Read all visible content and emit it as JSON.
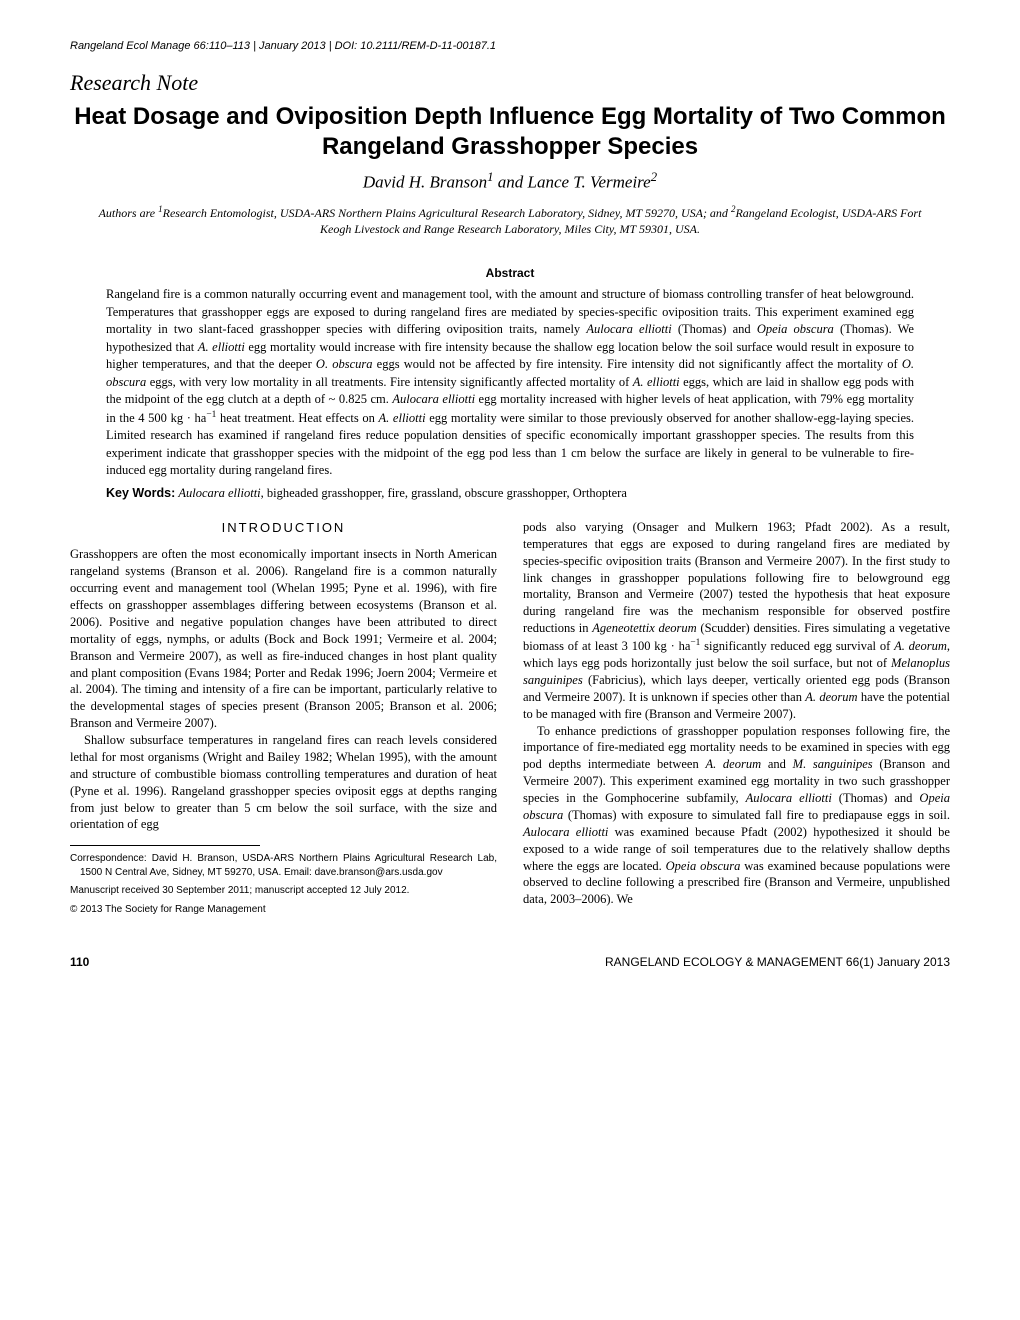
{
  "citation_header": "Rangeland Ecol Manage 66:110–113 | January 2013 | DOI: 10.2111/REM-D-11-00187.1",
  "section_type": "Research Note",
  "title": "Heat Dosage and Oviposition Depth Influence Egg Mortality of Two Common Rangeland Grasshopper Species",
  "authors_html": "David H. Branson<sup>1</sup> and Lance T. Vermeire<sup>2</sup>",
  "affiliations_html": "Authors are <sup>1</sup>Research Entomologist, USDA-ARS Northern Plains Agricultural Research Laboratory, Sidney, MT 59270, USA; and <sup>2</sup>Rangeland Ecologist, USDA-ARS Fort Keogh Livestock and Range Research Laboratory, Miles City, MT 59301, USA.",
  "abstract_heading": "Abstract",
  "abstract_html": "Rangeland fire is a common naturally occurring event and management tool, with the amount and structure of biomass controlling transfer of heat belowground. Temperatures that grasshopper eggs are exposed to during rangeland fires are mediated by species-specific oviposition traits. This experiment examined egg mortality in two slant-faced grasshopper species with differing oviposition traits, namely <span class=\"ital\">Aulocara elliotti</span> (Thomas) and <span class=\"ital\">Opeia obscura</span> (Thomas). We hypothesized that <span class=\"ital\">A. elliotti</span> egg mortality would increase with fire intensity because the shallow egg location below the soil surface would result in exposure to higher temperatures, and that the deeper <span class=\"ital\">O. obscura</span> eggs would not be affected by fire intensity. Fire intensity did not significantly affect the mortality of <span class=\"ital\">O. obscura</span> eggs, with very low mortality in all treatments. Fire intensity significantly affected mortality of <span class=\"ital\">A. elliotti</span> eggs, which are laid in shallow egg pods with the midpoint of the egg clutch at a depth of ~ 0.825 cm. <span class=\"ital\">Aulocara elliotti</span> egg mortality increased with higher levels of heat application, with 79% egg mortality in the 4 500 kg · ha<sup>−1</sup> heat treatment. Heat effects on <span class=\"ital\">A. elliotti</span> egg mortality were similar to those previously observed for another shallow-egg-laying species. Limited research has examined if rangeland fires reduce population densities of specific economically important grasshopper species. The results from this experiment indicate that grasshopper species with the midpoint of the egg pod less than 1 cm below the surface are likely in general to be vulnerable to fire-induced egg mortality during rangeland fires.",
  "keywords_label": "Key Words:",
  "keywords_html": "<span class=\"ital\">Aulocara elliotti</span>, bigheaded grasshopper, fire, grassland, obscure grasshopper, Orthoptera",
  "introduction_heading": "INTRODUCTION",
  "left_p1": "Grasshoppers are often the most economically important insects in North American rangeland systems (Branson et al. 2006). Rangeland fire is a common naturally occurring event and management tool (Whelan 1995; Pyne et al. 1996), with fire effects on grasshopper assemblages differing between ecosystems (Branson et al. 2006). Positive and negative population changes have been attributed to direct mortality of eggs, nymphs, or adults (Bock and Bock 1991; Vermeire et al. 2004; Branson and Vermeire 2007), as well as fire-induced changes in host plant quality and plant composition (Evans 1984; Porter and Redak 1996; Joern 2004; Vermeire et al. 2004). The timing and intensity of a fire can be important, particularly relative to the developmental stages of species present (Branson 2005; Branson et al. 2006; Branson and Vermeire 2007).",
  "left_p2": "Shallow subsurface temperatures in rangeland fires can reach levels considered lethal for most organisms (Wright and Bailey 1982; Whelan 1995), with the amount and structure of combustible biomass controlling temperatures and duration of heat (Pyne et al. 1996). Rangeland grasshopper species oviposit eggs at depths ranging from just below to greater than 5 cm below the soil surface, with the size and orientation of egg",
  "right_p1_html": "pods also varying (Onsager and Mulkern 1963; Pfadt 2002). As a result, temperatures that eggs are exposed to during rangeland fires are mediated by species-specific oviposition traits (Branson and Vermeire 2007). In the first study to link changes in grasshopper populations following fire to belowground egg mortality, Branson and Vermeire (2007) tested the hypothesis that heat exposure during rangeland fire was the mechanism responsible for observed postfire reductions in <span class=\"ital\">Ageneotettix deorum</span> (Scudder) densities. Fires simulating a vegetative biomass of at least 3 100 kg · ha<sup>−1</sup> significantly reduced egg survival of <span class=\"ital\">A. deorum</span>, which lays egg pods horizontally just below the soil surface, but not of <span class=\"ital\">Melanoplus sanguinipes</span> (Fabricius), which lays deeper, vertically oriented egg pods (Branson and Vermeire 2007). It is unknown if species other than <span class=\"ital\">A. deorum</span> have the potential to be managed with fire (Branson and Vermeire 2007).",
  "right_p2_html": "To enhance predictions of grasshopper population responses following fire, the importance of fire-mediated egg mortality needs to be examined in species with egg pod depths intermediate between <span class=\"ital\">A. deorum</span> and <span class=\"ital\">M. sanguinipes</span> (Branson and Vermeire 2007). This experiment examined egg mortality in two such grasshopper species in the Gomphocerine subfamily, <span class=\"ital\">Aulocara elliotti</span> (Thomas) and <span class=\"ital\">Opeia obscura</span> (Thomas) with exposure to simulated fall fire to prediapause eggs in soil. <span class=\"ital\">Aulocara elliotti</span> was examined because Pfadt (2002) hypothesized it should be exposed to a wide range of soil temperatures due to the relatively shallow depths where the eggs are located. <span class=\"ital\">Opeia obscura</span> was examined because populations were observed to decline following a prescribed fire (Branson and Vermeire, unpublished data, 2003–2006). We",
  "correspondence": "Correspondence: David H. Branson, USDA-ARS Northern Plains Agricultural Research Lab, 1500 N Central Ave, Sidney, MT 59270, USA. Email: dave.branson@ars.usda.gov",
  "manuscript_dates": "Manuscript received 30 September 2011; manuscript accepted 12 July 2012.",
  "copyright": "© 2013 The Society for Range Management",
  "page_number": "110",
  "journal_footer": "RANGELAND ECOLOGY & MANAGEMENT 66(1) January 2013"
}
